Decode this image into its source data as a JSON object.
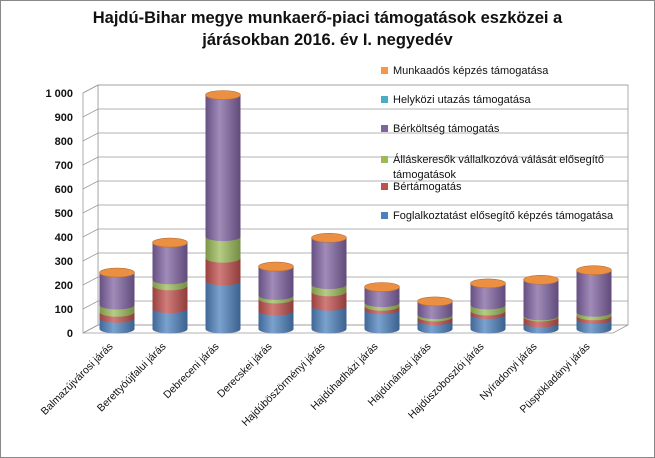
{
  "chart_data": {
    "type": "bar",
    "stacked": true,
    "three_d": true,
    "title": "Hajdú-Bihar megye munkaerő-piaci támogatások eszközei a járásokban 2016. év I. negyedév",
    "title_lines": [
      "Hajdú-Bihar megye munkaerő-piaci támogatások eszközei a",
      "járásokban 2016. év I. negyedév"
    ],
    "xlabel": "",
    "ylabel": "",
    "ylim": [
      0,
      1000
    ],
    "yticks": [
      0,
      100,
      200,
      300,
      400,
      500,
      600,
      700,
      800,
      900,
      1000
    ],
    "ytick_labels": [
      "0",
      "100",
      "200",
      "300",
      "400",
      "500",
      "600",
      "700",
      "800",
      "900",
      "1 000"
    ],
    "grid": true,
    "legend_position": "right",
    "categories": [
      "Balmazújvárosi járás",
      "Berettyóújfalui járás",
      "Debreceni járás",
      "Derecskei járás",
      "Hajdúböszörményi járás",
      "Hajdúhadházi járás",
      "Hajdúnánási járás",
      "Hajdúszoboszlói járás",
      "Nyíradonyi járás",
      "Püspökladányi járás"
    ],
    "series": [
      {
        "name": "Foglalkoztatást elősegítő képzés támogatása",
        "color": "#4F81BD",
        "values": [
          45,
          85,
          200,
          75,
          95,
          80,
          35,
          60,
          25,
          40
        ]
      },
      {
        "name": "Bértámogatás",
        "color": "#C0504D",
        "values": [
          25,
          95,
          95,
          50,
          60,
          15,
          15,
          15,
          25,
          15
        ]
      },
      {
        "name": "Álláskeresők vállalkozóvá válását elősegítő támogatások",
        "color": "#9BBB59",
        "values": [
          30,
          25,
          90,
          15,
          30,
          15,
          10,
          25,
          5,
          15
        ]
      },
      {
        "name": "Bérköltség támogatás",
        "color": "#8064A2",
        "values": [
          135,
          155,
          590,
          120,
          195,
          65,
          55,
          90,
          150,
          175
        ]
      },
      {
        "name": "Helyközi utazás támogatása",
        "color": "#4BACC6",
        "values": [
          0,
          0,
          0,
          0,
          0,
          0,
          0,
          0,
          0,
          0
        ]
      },
      {
        "name": "Munkaadós képzés támogatása",
        "color": "#F79646",
        "values": [
          0,
          0,
          0,
          0,
          0,
          0,
          0,
          0,
          0,
          0
        ]
      }
    ],
    "legend": [
      {
        "text": "Munkaadós képzés támogatása",
        "color": "#F79646"
      },
      {
        "text": "Helyközi utazás támogatása",
        "color": "#4BACC6"
      },
      {
        "text": "Bérköltség támogatás",
        "color": "#8064A2"
      },
      {
        "text_lines": [
          "Álláskeresők vállalkozóvá válását elősegítő",
          "támogatások"
        ],
        "color": "#9BBB59"
      },
      {
        "text": "Bértámogatás",
        "color": "#C0504D"
      },
      {
        "text": "Foglalkoztatást elősegítő képzés támogatása",
        "color": "#4F81BD"
      }
    ]
  }
}
